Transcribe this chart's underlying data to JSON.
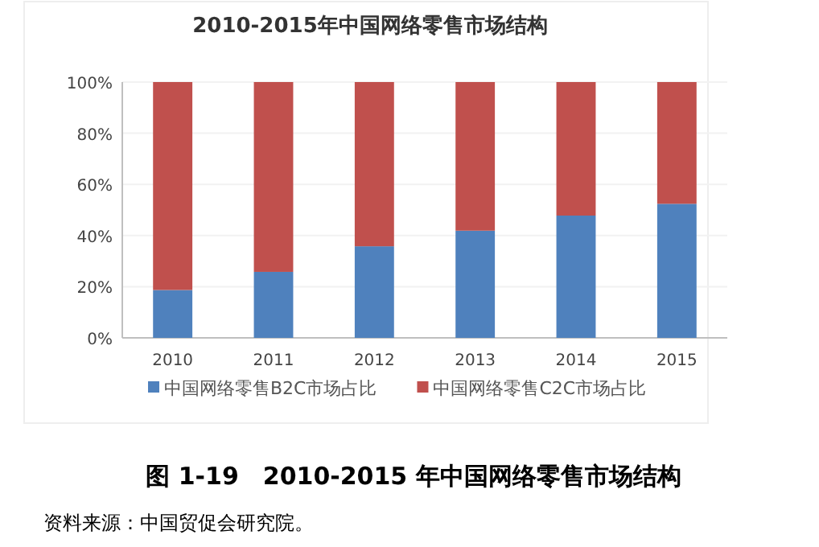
{
  "chart_data": {
    "type": "bar",
    "title": "2010-2015年中国网络零售市场结构",
    "stacked": true,
    "categories": [
      "2010",
      "2011",
      "2012",
      "2013",
      "2014",
      "2015"
    ],
    "series": [
      {
        "name": "中国网络零售B2C市场占比",
        "color": "#4f81bd",
        "values": [
          18.7,
          25.8,
          35.8,
          41.9,
          47.8,
          52.4
        ]
      },
      {
        "name": "中国网络零售C2C市场占比",
        "color": "#c0504d",
        "values": [
          81.3,
          74.2,
          64.2,
          58.1,
          52.2,
          47.6
        ]
      }
    ],
    "ylim": [
      0,
      100
    ],
    "yticks": [
      {
        "value": 0,
        "label": "0%"
      },
      {
        "value": 20,
        "label": "20%"
      },
      {
        "value": 40,
        "label": "40%"
      },
      {
        "value": 60,
        "label": "60%"
      },
      {
        "value": 80,
        "label": "80%"
      },
      {
        "value": 100,
        "label": "100%"
      }
    ],
    "grid": "y",
    "legend": "bottom",
    "annotations": [
      "图 1-19　2010-2015 年中国网络零售市场结构",
      "资料来源：中国贸促会研究院。"
    ]
  }
}
